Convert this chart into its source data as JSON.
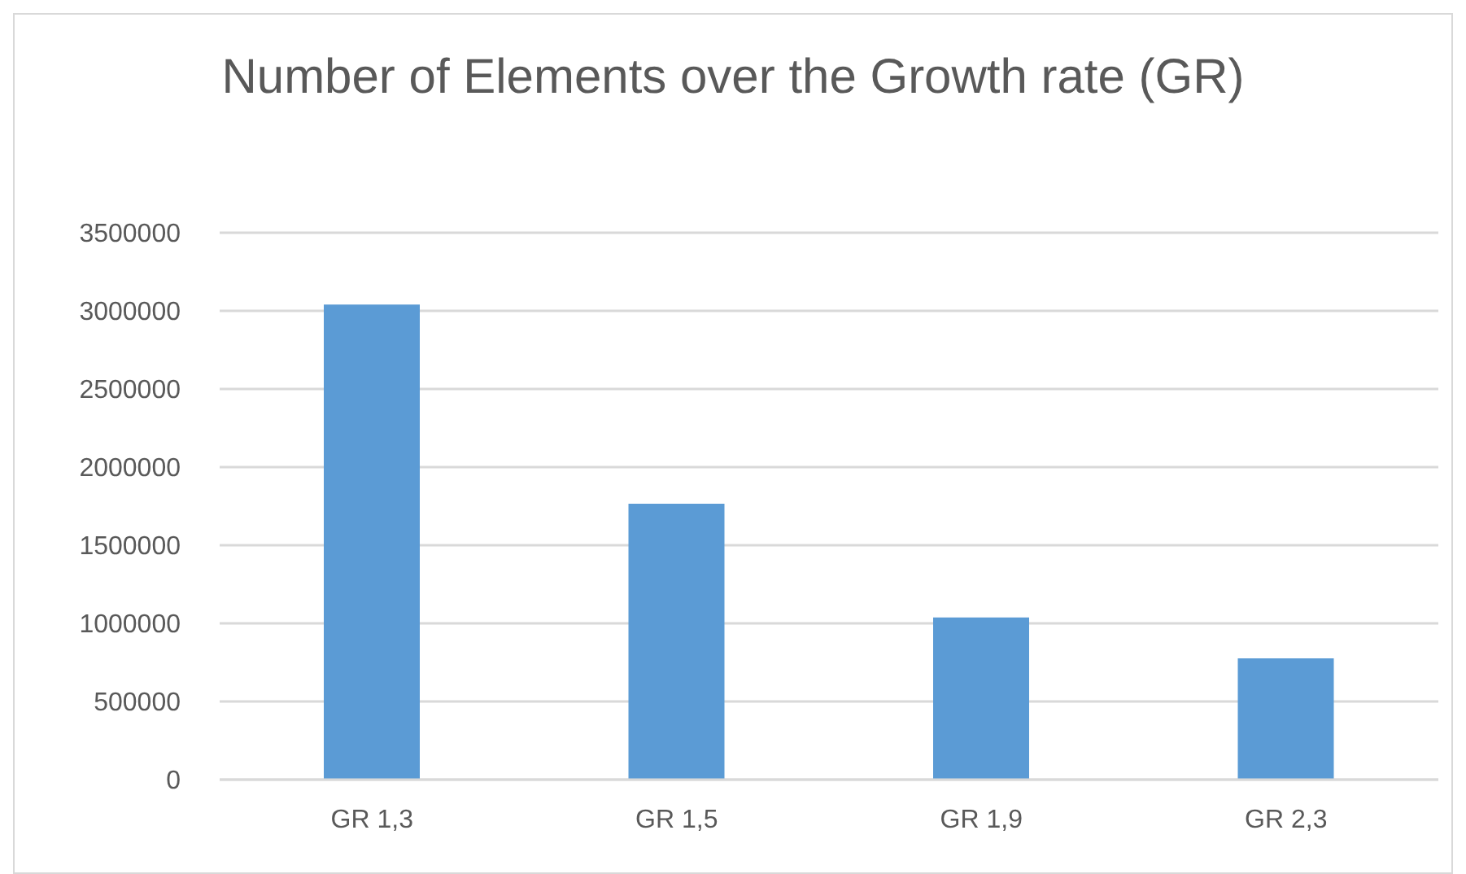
{
  "chart_data": {
    "type": "bar",
    "title": "Number of Elements over the Growth rate (GR)",
    "categories": [
      "GR 1,3",
      "GR 1,5",
      "GR 1,9",
      "GR 2,3"
    ],
    "values": [
      3040000,
      1765000,
      1038000,
      776000
    ],
    "color": "#5b9bd5",
    "ylim": [
      0,
      3500000
    ],
    "yticks": [
      0,
      500000,
      1000000,
      1500000,
      2000000,
      2500000,
      3000000,
      3500000
    ],
    "grid": "y"
  }
}
